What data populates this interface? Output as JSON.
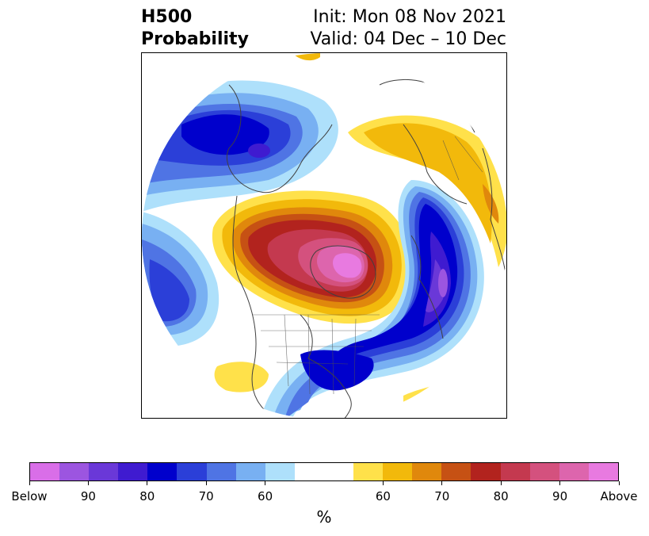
{
  "header": {
    "title_line1": "H500",
    "title_line2": "Probability",
    "init_text": "Init: Mon 08 Nov 2021",
    "valid_text": "Valid: 04 Dec – 10 Dec"
  },
  "map": {
    "projection": "north polar stereographic",
    "field": "500 hPa height anomaly probability",
    "features": [
      {
        "name": "above-normal-core",
        "category": "Above",
        "region": "Greenland / Canadian Arctic"
      },
      {
        "name": "below-normal-core",
        "category": "90",
        "region": "North Atlantic"
      },
      {
        "name": "below-normal-west",
        "category": "80",
        "region": "Siberia / Bering Sea"
      },
      {
        "name": "below-normal-east-us",
        "category": "80",
        "region": "Eastern United States"
      }
    ]
  },
  "colorbar": {
    "unit_label": "%",
    "segments": [
      {
        "color": "#d96ee8",
        "meaning": "Below"
      },
      {
        "color": "#9c55e0",
        "meaning": "Below 90"
      },
      {
        "color": "#6a38d8",
        "meaning": "Below 85"
      },
      {
        "color": "#3f1bd0",
        "meaning": "Below 80"
      },
      {
        "color": "#0000cc",
        "meaning": "Below 75"
      },
      {
        "color": "#2b3fd8",
        "meaning": "Below 70"
      },
      {
        "color": "#4f74e4",
        "meaning": "Below 65"
      },
      {
        "color": "#78b0f2",
        "meaning": "Below 60"
      },
      {
        "color": "#aee0fb",
        "meaning": "Below 55"
      },
      {
        "color": "#ffffff",
        "meaning": "Neutral"
      },
      {
        "color": "#ffffff",
        "meaning": "Neutral"
      },
      {
        "color": "#ffe14a",
        "meaning": "Above 55"
      },
      {
        "color": "#f2b90b",
        "meaning": "Above 60"
      },
      {
        "color": "#e0880c",
        "meaning": "Above 65"
      },
      {
        "color": "#c65114",
        "meaning": "Above 70"
      },
      {
        "color": "#b2231e",
        "meaning": "Above 75"
      },
      {
        "color": "#c4394f",
        "meaning": "Above 80"
      },
      {
        "color": "#d4517e",
        "meaning": "Above 85"
      },
      {
        "color": "#dd65ad",
        "meaning": "Above 90"
      },
      {
        "color": "#e87ae0",
        "meaning": "Above"
      }
    ],
    "tick_labels": [
      "Below",
      "90",
      "80",
      "70",
      "60",
      "60",
      "70",
      "80",
      "90",
      "Above"
    ]
  }
}
